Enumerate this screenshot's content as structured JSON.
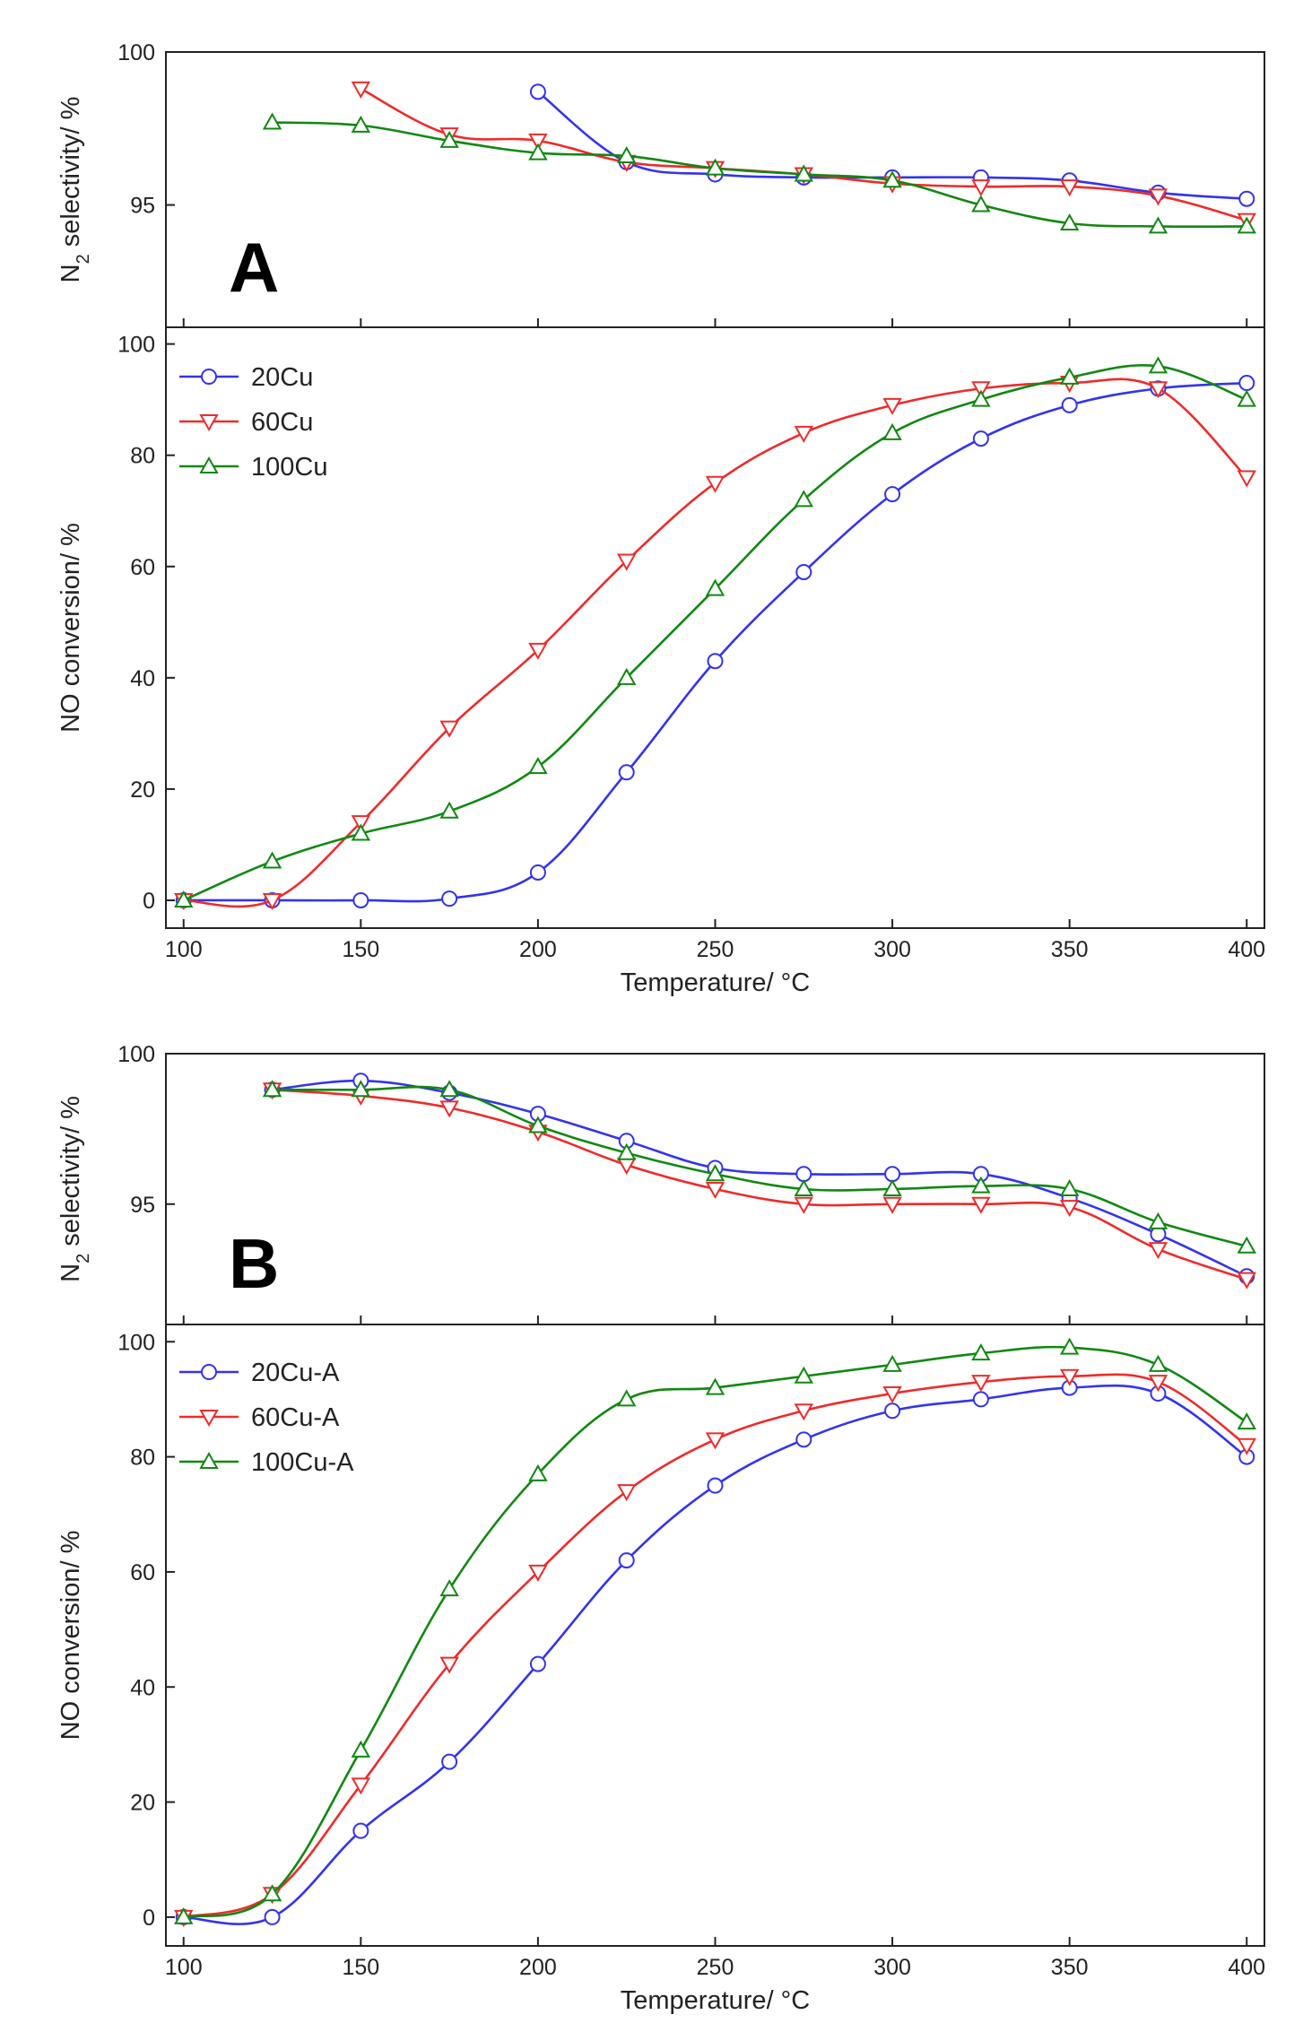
{
  "chart_data": [
    {
      "type": "line",
      "panel": "A",
      "subplot": "top",
      "ylabel": "N2 selectivity/ %",
      "ylabel_main": "N",
      "ylabel_sub": "2",
      "ylabel_rest": " selectivity/ %",
      "xlim": [
        95,
        405
      ],
      "ylim": [
        91,
        100
      ],
      "yticks": [
        95,
        100
      ],
      "ytick_labels": [
        "95",
        "100"
      ],
      "legend": "none",
      "series": [
        {
          "name": "20Cu",
          "color": "#3333ee",
          "marker": "circle",
          "x": [
            200,
            225,
            250,
            275,
            300,
            325,
            350,
            375,
            400
          ],
          "values": [
            98.7,
            96.4,
            96.0,
            95.9,
            95.9,
            95.9,
            95.8,
            95.4,
            95.2
          ]
        },
        {
          "name": "60Cu",
          "color": "#ee2b2b",
          "marker": "triangle-down",
          "x": [
            150,
            175,
            200,
            225,
            250,
            275,
            300,
            325,
            350,
            375,
            400
          ],
          "values": [
            98.8,
            97.3,
            97.1,
            96.4,
            96.2,
            96.0,
            95.7,
            95.6,
            95.6,
            95.3,
            94.5
          ]
        },
        {
          "name": "100Cu",
          "color": "#118811",
          "marker": "triangle-up",
          "x": [
            125,
            150,
            175,
            200,
            225,
            250,
            275,
            300,
            325,
            350,
            375,
            400
          ],
          "values": [
            97.7,
            97.6,
            97.1,
            96.7,
            96.6,
            96.2,
            96.0,
            95.8,
            95.0,
            94.4,
            94.3,
            94.3
          ]
        }
      ]
    },
    {
      "type": "line",
      "panel": "A",
      "subplot": "bottom",
      "xlabel": "Temperature/ °C",
      "ylabel": "NO conversion/ %",
      "xlim": [
        95,
        405
      ],
      "ylim": [
        -5,
        103
      ],
      "xticks": [
        100,
        150,
        200,
        250,
        300,
        350,
        400
      ],
      "xtick_labels": [
        "100",
        "150",
        "200",
        "250",
        "300",
        "350",
        "400"
      ],
      "yticks": [
        0,
        20,
        40,
        60,
        80,
        100
      ],
      "ytick_labels": [
        "0",
        "20",
        "40",
        "60",
        "80",
        "100"
      ],
      "legend": "top-left",
      "series": [
        {
          "name": "20Cu",
          "color": "#3333ee",
          "marker": "circle",
          "x": [
            100,
            125,
            150,
            175,
            200,
            225,
            250,
            275,
            300,
            325,
            350,
            375,
            400
          ],
          "values": [
            0,
            0,
            0,
            0.3,
            5,
            23,
            43,
            59,
            73,
            83,
            89,
            92,
            93
          ]
        },
        {
          "name": "60Cu",
          "color": "#ee2b2b",
          "marker": "triangle-down",
          "x": [
            100,
            125,
            150,
            175,
            200,
            225,
            250,
            275,
            300,
            325,
            350,
            375,
            400
          ],
          "values": [
            0,
            0,
            14,
            31,
            45,
            61,
            75,
            84,
            89,
            92,
            93,
            92,
            76
          ]
        },
        {
          "name": "100Cu",
          "color": "#118811",
          "marker": "triangle-up",
          "x": [
            100,
            125,
            150,
            175,
            200,
            225,
            250,
            275,
            300,
            325,
            350,
            375,
            400
          ],
          "values": [
            0,
            7,
            12,
            16,
            24,
            40,
            56,
            72,
            84,
            90,
            94,
            96,
            90
          ]
        }
      ]
    },
    {
      "type": "line",
      "panel": "B",
      "subplot": "top",
      "ylabel": "N2 selectivity/ %",
      "ylabel_main": "N",
      "ylabel_sub": "2",
      "ylabel_rest": " selectivity/ %",
      "xlim": [
        95,
        405
      ],
      "ylim": [
        91,
        100
      ],
      "yticks": [
        95,
        100
      ],
      "ytick_labels": [
        "95",
        "100"
      ],
      "legend": "none",
      "series": [
        {
          "name": "20Cu-A",
          "color": "#3333ee",
          "marker": "circle",
          "x": [
            125,
            150,
            175,
            200,
            225,
            250,
            275,
            300,
            325,
            350,
            375,
            400
          ],
          "values": [
            98.8,
            99.1,
            98.7,
            98.0,
            97.1,
            96.2,
            96.0,
            96.0,
            96.0,
            95.2,
            94.0,
            92.6
          ]
        },
        {
          "name": "60Cu-A",
          "color": "#ee2b2b",
          "marker": "triangle-down",
          "x": [
            125,
            150,
            175,
            200,
            225,
            250,
            275,
            300,
            325,
            350,
            375,
            400
          ],
          "values": [
            98.8,
            98.6,
            98.2,
            97.4,
            96.3,
            95.5,
            95.0,
            95.0,
            95.0,
            94.9,
            93.5,
            92.5
          ]
        },
        {
          "name": "100Cu-A",
          "color": "#118811",
          "marker": "triangle-up",
          "x": [
            125,
            150,
            175,
            200,
            225,
            250,
            275,
            300,
            325,
            350,
            375,
            400
          ],
          "values": [
            98.8,
            98.8,
            98.8,
            97.6,
            96.7,
            96.0,
            95.5,
            95.5,
            95.6,
            95.5,
            94.4,
            93.6
          ]
        }
      ]
    },
    {
      "type": "line",
      "panel": "B",
      "subplot": "bottom",
      "xlabel": "Temperature/ °C",
      "ylabel": "NO conversion/ %",
      "xlim": [
        95,
        405
      ],
      "ylim": [
        -5,
        103
      ],
      "xticks": [
        100,
        150,
        200,
        250,
        300,
        350,
        400
      ],
      "xtick_labels": [
        "100",
        "150",
        "200",
        "250",
        "300",
        "350",
        "400"
      ],
      "yticks": [
        0,
        20,
        40,
        60,
        80,
        100
      ],
      "ytick_labels": [
        "0",
        "20",
        "40",
        "60",
        "80",
        "100"
      ],
      "legend": "top-left",
      "series": [
        {
          "name": "20Cu-A",
          "color": "#3333ee",
          "marker": "circle",
          "x": [
            100,
            125,
            150,
            175,
            200,
            225,
            250,
            275,
            300,
            325,
            350,
            375,
            400
          ],
          "values": [
            0,
            0,
            15,
            27,
            44,
            62,
            75,
            83,
            88,
            90,
            92,
            91,
            80
          ]
        },
        {
          "name": "60Cu-A",
          "color": "#ee2b2b",
          "marker": "triangle-down",
          "x": [
            100,
            125,
            150,
            175,
            200,
            225,
            250,
            275,
            300,
            325,
            350,
            375,
            400
          ],
          "values": [
            0,
            4,
            23,
            44,
            60,
            74,
            83,
            88,
            91,
            93,
            94,
            93,
            82
          ]
        },
        {
          "name": "100Cu-A",
          "color": "#118811",
          "marker": "triangle-up",
          "x": [
            100,
            125,
            150,
            175,
            200,
            225,
            250,
            275,
            300,
            325,
            350,
            375,
            400
          ],
          "values": [
            0,
            4,
            29,
            57,
            77,
            90,
            92,
            94,
            96,
            98,
            99,
            96,
            86
          ]
        }
      ]
    }
  ],
  "panel_labels": [
    "A",
    "B"
  ]
}
